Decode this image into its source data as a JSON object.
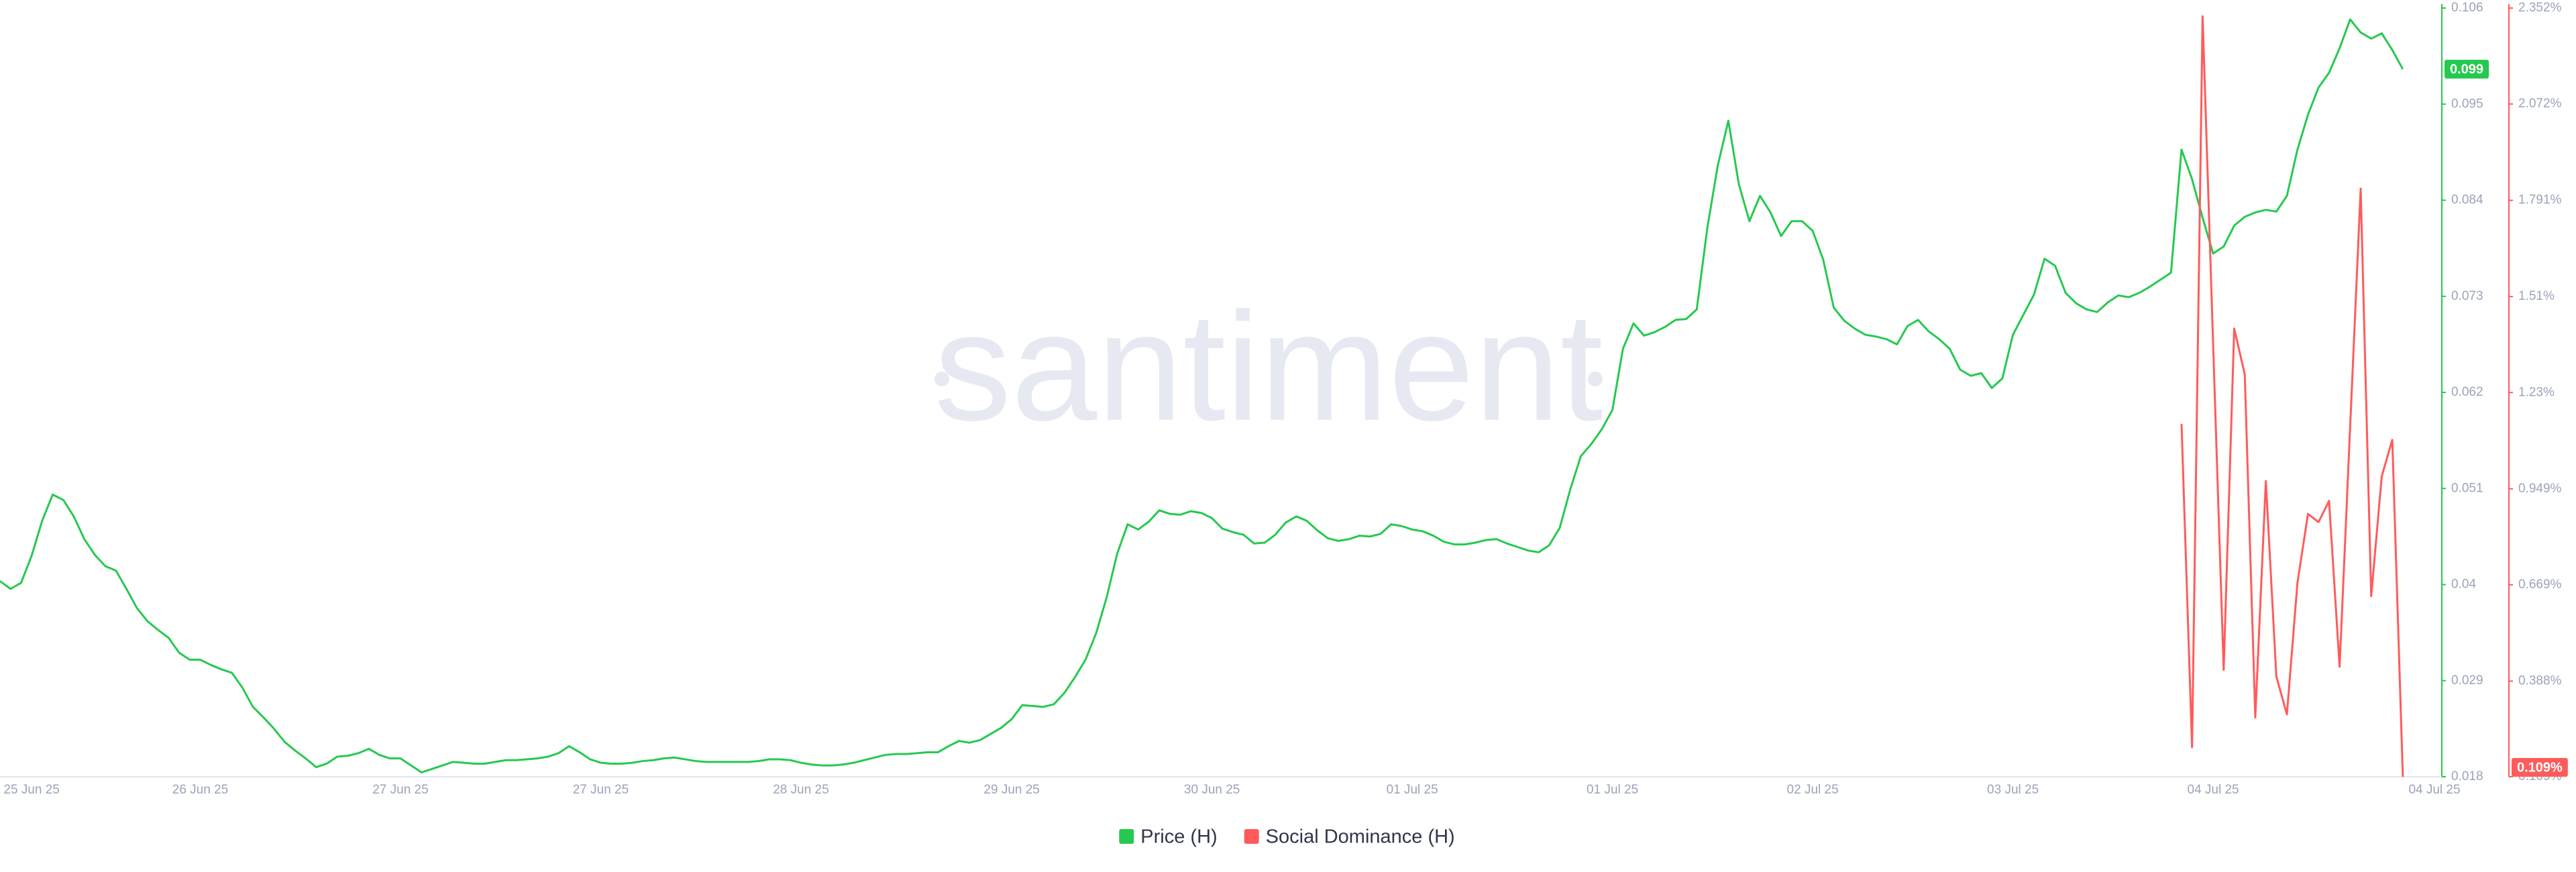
{
  "chart_data": {
    "type": "line",
    "watermark": "santiment",
    "categories": [
      null,
      null,
      null,
      "25 Jun 25",
      null,
      null,
      null,
      null,
      null,
      null,
      null,
      null,
      null,
      null,
      null,
      null,
      null,
      null,
      null,
      "26 Jun 25",
      null,
      null,
      null,
      null,
      null,
      null,
      null,
      null,
      null,
      null,
      null,
      null,
      null,
      null,
      null,
      null,
      null,
      null,
      "27 Jun 25",
      null,
      null,
      null,
      null,
      null,
      null,
      null,
      null,
      null,
      null,
      null,
      null,
      null,
      null,
      null,
      null,
      null,
      null,
      "27 Jun 25",
      null,
      null,
      null,
      null,
      null,
      null,
      null,
      null,
      null,
      null,
      null,
      null,
      null,
      null,
      null,
      null,
      null,
      null,
      "28 Jun 25",
      null,
      null,
      null,
      null,
      null,
      null,
      null,
      null,
      null,
      null,
      null,
      null,
      null,
      null,
      null,
      null,
      null,
      null,
      null,
      "29 Jun 25",
      null,
      null,
      null,
      null,
      null,
      null,
      null,
      null,
      null,
      null,
      null,
      null,
      null,
      null,
      null,
      null,
      null,
      null,
      "30 Jun 25",
      null,
      null,
      null,
      null,
      null,
      null,
      null,
      null,
      null,
      null,
      null,
      null,
      null,
      null,
      null,
      null,
      null,
      null,
      "01 Jul 25",
      null,
      null,
      null,
      null,
      null,
      null,
      null,
      null,
      null,
      null,
      null,
      null,
      null,
      null,
      null,
      null,
      null,
      null,
      "01 Jul 25",
      null,
      null,
      null,
      null,
      null,
      null,
      null,
      null,
      null,
      null,
      null,
      null,
      null,
      null,
      null,
      null,
      null,
      null,
      "02 Jul 25",
      null,
      null,
      null,
      null,
      null,
      null,
      null,
      null,
      null,
      null,
      null,
      null,
      null,
      null,
      null,
      null,
      null,
      null,
      "03 Jul 25",
      null,
      null,
      null,
      null,
      null,
      null,
      null,
      null,
      null,
      null,
      null,
      null,
      null,
      null,
      null,
      null,
      null,
      null,
      "04 Jul 25",
      null,
      null,
      null,
      null,
      null,
      null,
      null,
      null,
      null,
      null,
      null,
      null,
      null,
      null,
      null,
      null,
      null,
      null,
      null,
      null,
      "04 Jul 25"
    ],
    "series": [
      {
        "name": "Price (H)",
        "color": "#26c94f",
        "last_label": "0.099",
        "values": [
          0.0404,
          0.0395,
          0.0402,
          0.0433,
          0.0473,
          0.0503,
          0.0497,
          0.0478,
          0.0452,
          0.0434,
          0.0421,
          0.0416,
          0.0395,
          0.0373,
          0.0358,
          0.0348,
          0.0339,
          0.0322,
          0.0314,
          0.0314,
          0.0308,
          0.0303,
          0.0299,
          0.0282,
          0.026,
          0.0248,
          0.0235,
          0.022,
          0.021,
          0.0201,
          0.0191,
          0.0195,
          0.0203,
          0.0204,
          0.0207,
          0.0212,
          0.0205,
          0.0201,
          0.0201,
          0.0193,
          0.0185,
          0.0189,
          0.0193,
          0.0197,
          0.0196,
          0.0195,
          0.0195,
          0.0197,
          0.0199,
          0.0199,
          0.02,
          0.0201,
          0.0203,
          0.0207,
          0.0215,
          0.0208,
          0.02,
          0.0196,
          0.0195,
          0.0195,
          0.0196,
          0.0198,
          0.0199,
          0.0201,
          0.0202,
          0.02,
          0.0198,
          0.0197,
          0.0197,
          0.0197,
          0.0197,
          0.0197,
          0.0198,
          0.02,
          0.02,
          0.0199,
          0.0196,
          0.0194,
          0.0193,
          0.0193,
          0.0194,
          0.0196,
          0.0199,
          0.0202,
          0.0205,
          0.0206,
          0.0206,
          0.0207,
          0.0208,
          0.0208,
          0.0215,
          0.0221,
          0.0219,
          0.0222,
          0.0229,
          0.0236,
          0.0246,
          0.0262,
          0.0261,
          0.026,
          0.0263,
          0.0276,
          0.0294,
          0.0314,
          0.0344,
          0.0385,
          0.0435,
          0.0469,
          0.0463,
          0.0472,
          0.0485,
          0.0481,
          0.048,
          0.0484,
          0.0482,
          0.0476,
          0.0464,
          0.046,
          0.0457,
          0.0447,
          0.0448,
          0.0457,
          0.0471,
          0.0478,
          0.0473,
          0.0462,
          0.0453,
          0.045,
          0.0452,
          0.0456,
          0.0455,
          0.0458,
          0.0469,
          0.0467,
          0.0463,
          0.0461,
          0.0456,
          0.0449,
          0.0446,
          0.0446,
          0.0448,
          0.0451,
          0.0452,
          0.0447,
          0.0443,
          0.0439,
          0.0437,
          0.0445,
          0.0465,
          0.0509,
          0.0547,
          0.0561,
          0.0578,
          0.06,
          0.067,
          0.0699,
          0.0685,
          0.0689,
          0.0695,
          0.0703,
          0.0704,
          0.0715,
          0.0808,
          0.088,
          0.0931,
          0.0858,
          0.0816,
          0.0845,
          0.0826,
          0.0799,
          0.0816,
          0.0816,
          0.0805,
          0.0772,
          0.0717,
          0.0702,
          0.0693,
          0.0686,
          0.0684,
          0.0681,
          0.0675,
          0.0696,
          0.0703,
          0.069,
          0.0681,
          0.067,
          0.0646,
          0.0639,
          0.0642,
          0.0625,
          0.0636,
          0.0686,
          0.0709,
          0.0732,
          0.0773,
          0.0765,
          0.0734,
          0.0722,
          0.0715,
          0.0712,
          0.0723,
          0.0731,
          0.0729,
          0.0734,
          0.0741,
          0.0749,
          0.0757,
          0.0898,
          0.0864,
          0.082,
          0.0779,
          0.0787,
          0.0811,
          0.0821,
          0.0826,
          0.0829,
          0.0827,
          0.0845,
          0.0898,
          0.0938,
          0.0969,
          0.0986,
          0.1014,
          0.1047,
          0.1032,
          0.1025,
          0.1031,
          0.1012,
          0.099,
          null,
          null,
          null
        ]
      },
      {
        "name": "Social Dominance (H)",
        "color": "#ff5b5b",
        "axis": "y2",
        "last_label": "0.109%",
        "values": [
          null,
          null,
          null,
          null,
          null,
          null,
          null,
          null,
          null,
          null,
          null,
          null,
          null,
          null,
          null,
          null,
          null,
          null,
          null,
          null,
          null,
          null,
          null,
          null,
          null,
          null,
          null,
          null,
          null,
          null,
          null,
          null,
          null,
          null,
          null,
          null,
          null,
          null,
          null,
          null,
          null,
          null,
          null,
          null,
          null,
          null,
          null,
          null,
          null,
          null,
          null,
          null,
          null,
          null,
          null,
          null,
          null,
          null,
          null,
          null,
          null,
          null,
          null,
          null,
          null,
          null,
          null,
          null,
          null,
          null,
          null,
          null,
          null,
          null,
          null,
          null,
          null,
          null,
          null,
          null,
          null,
          null,
          null,
          null,
          null,
          null,
          null,
          null,
          null,
          null,
          null,
          null,
          null,
          null,
          null,
          null,
          null,
          null,
          null,
          null,
          null,
          null,
          null,
          null,
          null,
          null,
          null,
          null,
          null,
          null,
          null,
          null,
          null,
          null,
          null,
          null,
          null,
          null,
          null,
          null,
          null,
          null,
          null,
          null,
          null,
          null,
          null,
          null,
          null,
          null,
          null,
          null,
          null,
          null,
          null,
          null,
          null,
          null,
          null,
          null,
          null,
          null,
          null,
          null,
          null,
          null,
          null,
          null,
          null,
          null,
          null,
          null,
          null,
          null,
          null,
          null,
          null,
          null,
          null,
          null,
          null,
          null,
          null,
          null,
          null,
          null,
          null,
          null,
          null,
          null,
          null,
          null,
          null,
          null,
          null,
          null,
          null,
          null,
          null,
          null,
          null,
          null,
          null,
          null,
          null,
          null,
          null,
          null,
          null,
          null,
          null,
          null,
          null,
          null,
          null,
          null,
          null,
          null,
          null,
          null,
          null,
          null,
          null,
          null,
          null,
          null,
          null,
          1.139,
          0.195,
          2.328,
          1.37,
          0.421,
          1.417,
          1.283,
          0.282,
          0.972,
          0.401,
          0.291,
          0.675,
          0.876,
          0.852,
          0.914,
          0.43,
          1.13,
          1.825,
          0.636,
          0.986,
          1.092,
          0.109,
          null,
          null,
          null
        ]
      }
    ],
    "ylim": [
      0.018,
      0.106
    ],
    "yticks": [
      0.018,
      0.029,
      0.04,
      0.051,
      0.062,
      0.073,
      0.084,
      0.095,
      0.106
    ],
    "y2lim": [
      0.109,
      2.352
    ],
    "y2ticks": [
      {
        "value": 0.109,
        "label": "0.109%"
      },
      {
        "value": 0.388,
        "label": "0.388%"
      },
      {
        "value": 0.669,
        "label": "0.669%"
      },
      {
        "value": 0.949,
        "label": "0.949%"
      },
      {
        "value": 1.23,
        "label": "1.23%"
      },
      {
        "value": 1.51,
        "label": "1.51%"
      },
      {
        "value": 1.791,
        "label": "1.791%"
      },
      {
        "value": 2.072,
        "label": "2.072%"
      },
      {
        "value": 2.352,
        "label": "2.352%"
      }
    ],
    "grid": false,
    "legend": "bottom"
  }
}
